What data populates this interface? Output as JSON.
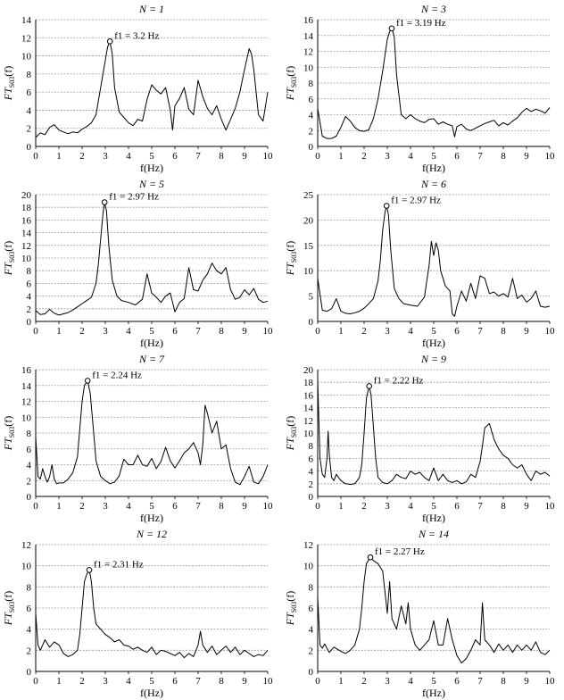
{
  "figure": {
    "xlabel": "f(Hz)",
    "ylabel_main": "FT",
    "ylabel_sub": "S03",
    "ylabel_tail": "(f)",
    "x_ticks": [
      "0",
      "1",
      "2",
      "3",
      "4",
      "5",
      "6",
      "7",
      "8",
      "9",
      "10"
    ],
    "line_color": "#000000",
    "grid_color": "#9a9a9a"
  },
  "chart_data": [
    {
      "type": "line",
      "title": "N = 1",
      "peak_label": "f1 = 3.2 Hz",
      "peak": [
        3.2,
        11.6
      ],
      "xlim": [
        0,
        10
      ],
      "ylim": [
        0,
        14
      ],
      "yticks": [
        "0",
        "2",
        "4",
        "6",
        "8",
        "10",
        "12",
        "14"
      ],
      "x": [
        0,
        0.2,
        0.4,
        0.6,
        0.8,
        1.0,
        1.2,
        1.4,
        1.6,
        1.8,
        2.0,
        2.2,
        2.4,
        2.6,
        2.8,
        3.0,
        3.1,
        3.2,
        3.3,
        3.4,
        3.6,
        3.8,
        4.0,
        4.2,
        4.4,
        4.6,
        4.8,
        5.0,
        5.2,
        5.4,
        5.6,
        5.8,
        5.9,
        6.0,
        6.2,
        6.4,
        6.6,
        6.8,
        7.0,
        7.2,
        7.4,
        7.6,
        7.8,
        8.0,
        8.2,
        8.4,
        8.6,
        8.8,
        9.0,
        9.2,
        9.3,
        9.4,
        9.6,
        9.8,
        10.0
      ],
      "y": [
        1.0,
        1.5,
        1.3,
        2.1,
        2.4,
        1.8,
        1.6,
        1.4,
        1.6,
        1.5,
        1.9,
        2.2,
        2.6,
        3.5,
        6.5,
        9.5,
        11.0,
        11.6,
        10.2,
        6.5,
        3.8,
        3.2,
        2.6,
        2.3,
        3.0,
        2.8,
        5.2,
        6.8,
        6.2,
        5.8,
        6.5,
        4.0,
        1.8,
        4.5,
        5.3,
        6.5,
        4.1,
        3.5,
        7.3,
        5.5,
        4.2,
        3.5,
        4.5,
        3.0,
        1.8,
        3.0,
        4.2,
        6.0,
        8.5,
        10.8,
        10.2,
        8.5,
        3.5,
        2.8,
        6.0
      ]
    },
    {
      "type": "line",
      "title": "N = 3",
      "peak_label": "f1 = 3.19 Hz",
      "peak": [
        3.19,
        14.9
      ],
      "xlim": [
        0,
        10
      ],
      "ylim": [
        0,
        16
      ],
      "yticks": [
        "0",
        "2",
        "4",
        "6",
        "8",
        "10",
        "12",
        "14",
        "16"
      ],
      "x": [
        0,
        0.2,
        0.4,
        0.6,
        0.8,
        1.0,
        1.2,
        1.4,
        1.6,
        1.8,
        2.0,
        2.2,
        2.4,
        2.6,
        2.8,
        3.0,
        3.1,
        3.2,
        3.3,
        3.4,
        3.6,
        3.8,
        4.0,
        4.2,
        4.4,
        4.6,
        4.8,
        5.0,
        5.2,
        5.4,
        5.6,
        5.8,
        5.9,
        6.0,
        6.2,
        6.4,
        6.6,
        6.8,
        7.0,
        7.2,
        7.4,
        7.6,
        7.8,
        8.0,
        8.2,
        8.4,
        8.6,
        8.8,
        9.0,
        9.2,
        9.4,
        9.6,
        9.8,
        10.0
      ],
      "y": [
        4.8,
        1.3,
        1.0,
        1.0,
        1.3,
        2.4,
        3.8,
        3.2,
        2.4,
        2.0,
        1.9,
        2.1,
        3.5,
        6.0,
        9.5,
        13.5,
        14.5,
        14.9,
        13.8,
        9.0,
        4.0,
        3.5,
        4.0,
        3.5,
        3.2,
        3.0,
        3.4,
        3.5,
        2.8,
        3.1,
        2.8,
        2.6,
        1.2,
        2.5,
        2.8,
        2.2,
        2.0,
        2.3,
        2.6,
        2.9,
        3.1,
        3.3,
        2.6,
        3.0,
        2.7,
        3.2,
        3.6,
        4.3,
        4.8,
        4.4,
        4.7,
        4.5,
        4.2,
        4.9
      ]
    },
    {
      "type": "line",
      "title": "N = 5",
      "peak_label": "f1 = 2.97 Hz",
      "peak": [
        2.97,
        18.8
      ],
      "xlim": [
        0,
        10
      ],
      "ylim": [
        0,
        20
      ],
      "yticks": [
        "0",
        "2",
        "4",
        "6",
        "8",
        "10",
        "12",
        "14",
        "16",
        "18",
        "20"
      ],
      "x": [
        0,
        0.2,
        0.4,
        0.6,
        0.8,
        1.0,
        1.2,
        1.4,
        1.6,
        1.8,
        2.0,
        2.2,
        2.4,
        2.6,
        2.7,
        2.8,
        2.9,
        2.97,
        3.05,
        3.15,
        3.3,
        3.5,
        3.7,
        4.0,
        4.3,
        4.6,
        4.8,
        5.0,
        5.2,
        5.4,
        5.6,
        5.8,
        6.0,
        6.2,
        6.4,
        6.6,
        6.8,
        7.0,
        7.2,
        7.4,
        7.6,
        7.8,
        8.0,
        8.2,
        8.4,
        8.6,
        8.8,
        9.0,
        9.2,
        9.4,
        9.6,
        9.8,
        10.0
      ],
      "y": [
        1.7,
        1.1,
        1.2,
        1.9,
        1.3,
        1.0,
        1.2,
        1.4,
        1.8,
        2.3,
        2.8,
        3.3,
        3.8,
        6.0,
        9.0,
        13.0,
        17.0,
        18.8,
        17.5,
        12.0,
        6.5,
        4.0,
        3.3,
        3.0,
        2.6,
        3.5,
        7.5,
        4.5,
        3.8,
        3.0,
        4.0,
        4.5,
        1.5,
        3.0,
        3.6,
        8.5,
        5.0,
        4.8,
        6.5,
        7.5,
        9.2,
        8.0,
        7.5,
        8.5,
        5.0,
        3.5,
        3.8,
        5.0,
        4.2,
        5.2,
        3.5,
        3.0,
        3.2
      ]
    },
    {
      "type": "line",
      "title": "N = 6",
      "peak_label": "f1 = 2.97 Hz",
      "peak": [
        2.97,
        22.8
      ],
      "xlim": [
        0,
        10
      ],
      "ylim": [
        0,
        25
      ],
      "yticks": [
        "0",
        "5",
        "10",
        "15",
        "20",
        "25"
      ],
      "x": [
        0,
        0.2,
        0.4,
        0.6,
        0.8,
        1.0,
        1.2,
        1.4,
        1.6,
        1.8,
        2.0,
        2.2,
        2.4,
        2.6,
        2.7,
        2.8,
        2.9,
        2.97,
        3.05,
        3.15,
        3.3,
        3.5,
        3.7,
        4.0,
        4.3,
        4.6,
        4.8,
        4.9,
        5.0,
        5.1,
        5.2,
        5.3,
        5.5,
        5.7,
        5.8,
        5.9,
        6.0,
        6.2,
        6.4,
        6.6,
        6.8,
        7.0,
        7.2,
        7.4,
        7.6,
        7.8,
        8.0,
        8.2,
        8.4,
        8.6,
        8.8,
        9.0,
        9.2,
        9.4,
        9.6,
        9.8,
        10.0
      ],
      "y": [
        8.5,
        2.2,
        2.0,
        2.5,
        4.5,
        2.0,
        1.6,
        1.5,
        1.7,
        2.0,
        2.6,
        3.5,
        4.5,
        8.0,
        12.0,
        18.0,
        21.5,
        22.8,
        21.0,
        14.0,
        6.5,
        4.5,
        3.5,
        3.2,
        3.0,
        4.8,
        11.0,
        15.8,
        13.0,
        15.5,
        14.0,
        10.0,
        7.0,
        6.0,
        1.5,
        1.0,
        3.0,
        6.0,
        4.0,
        7.5,
        4.5,
        9.0,
        8.5,
        5.5,
        5.8,
        5.0,
        5.5,
        4.8,
        8.5,
        4.5,
        5.2,
        3.8,
        4.5,
        6.0,
        3.0,
        2.8,
        3.0
      ]
    },
    {
      "type": "line",
      "title": "N = 7",
      "peak_label": "f1 = 2.24 Hz",
      "peak": [
        2.24,
        14.6
      ],
      "xlim": [
        0,
        10
      ],
      "ylim": [
        0,
        16
      ],
      "yticks": [
        "0",
        "2",
        "4",
        "6",
        "8",
        "10",
        "12",
        "14",
        "16"
      ],
      "x": [
        0,
        0.1,
        0.2,
        0.3,
        0.4,
        0.5,
        0.6,
        0.7,
        0.8,
        0.9,
        1.0,
        1.2,
        1.4,
        1.6,
        1.8,
        1.9,
        2.0,
        2.1,
        2.24,
        2.35,
        2.5,
        2.6,
        2.8,
        3.0,
        3.2,
        3.4,
        3.6,
        3.8,
        4.0,
        4.2,
        4.4,
        4.6,
        4.8,
        5.0,
        5.2,
        5.4,
        5.6,
        5.8,
        6.0,
        6.2,
        6.4,
        6.6,
        6.8,
        7.0,
        7.1,
        7.2,
        7.3,
        7.4,
        7.6,
        7.8,
        8.0,
        8.2,
        8.4,
        8.6,
        8.8,
        9.0,
        9.2,
        9.4,
        9.6,
        9.8,
        10.0
      ],
      "y": [
        7.5,
        2.5,
        2.2,
        3.5,
        2.5,
        1.8,
        2.5,
        4.0,
        2.2,
        1.6,
        1.7,
        1.7,
        2.2,
        3.0,
        5.0,
        8.5,
        12.0,
        14.0,
        14.6,
        13.0,
        8.0,
        4.5,
        2.5,
        2.0,
        1.6,
        1.8,
        2.6,
        4.7,
        4.0,
        4.0,
        5.2,
        4.0,
        3.8,
        4.8,
        3.5,
        4.4,
        6.2,
        4.5,
        3.6,
        4.5,
        5.5,
        6.0,
        6.8,
        5.5,
        4.0,
        6.5,
        11.5,
        10.5,
        8.0,
        9.5,
        6.0,
        6.5,
        3.5,
        1.8,
        1.5,
        2.5,
        3.8,
        1.8,
        1.6,
        2.5,
        4.0
      ]
    },
    {
      "type": "line",
      "title": "N = 9",
      "peak_label": "f1 = 2.22 Hz",
      "peak": [
        2.22,
        17.4
      ],
      "xlim": [
        0,
        10
      ],
      "ylim": [
        0,
        20
      ],
      "yticks": [
        "0",
        "2",
        "4",
        "6",
        "8",
        "10",
        "12",
        "14",
        "16",
        "18",
        "20"
      ],
      "x": [
        0,
        0.05,
        0.1,
        0.2,
        0.3,
        0.4,
        0.45,
        0.5,
        0.6,
        0.7,
        0.8,
        1.0,
        1.2,
        1.4,
        1.6,
        1.8,
        1.9,
        2.0,
        2.1,
        2.22,
        2.3,
        2.4,
        2.5,
        2.6,
        2.8,
        3.0,
        3.2,
        3.4,
        3.6,
        3.8,
        4.0,
        4.2,
        4.4,
        4.6,
        4.8,
        5.0,
        5.2,
        5.4,
        5.6,
        5.8,
        6.0,
        6.2,
        6.4,
        6.6,
        6.8,
        7.0,
        7.1,
        7.2,
        7.4,
        7.6,
        7.8,
        8.0,
        8.2,
        8.4,
        8.6,
        8.8,
        9.0,
        9.2,
        9.4,
        9.6,
        9.8,
        10.0
      ],
      "y": [
        18.3,
        12.0,
        6.0,
        3.5,
        3.0,
        6.0,
        10.3,
        6.5,
        3.0,
        2.5,
        3.5,
        2.5,
        2.0,
        1.9,
        2.0,
        3.0,
        5.0,
        10.0,
        15.5,
        17.4,
        16.0,
        11.0,
        6.0,
        3.0,
        2.2,
        2.0,
        2.5,
        3.5,
        3.0,
        2.8,
        4.0,
        3.5,
        3.8,
        3.0,
        2.5,
        4.5,
        2.5,
        3.5,
        2.5,
        2.2,
        2.5,
        2.0,
        2.3,
        3.5,
        3.0,
        5.5,
        8.0,
        10.8,
        11.5,
        9.0,
        7.5,
        6.5,
        6.0,
        5.0,
        4.5,
        5.0,
        3.5,
        2.5,
        4.0,
        3.5,
        3.8,
        3.2
      ]
    },
    {
      "type": "line",
      "title": "N = 12",
      "peak_label": "f1 = 2.31 Hz",
      "peak": [
        2.31,
        9.6
      ],
      "xlim": [
        0,
        10
      ],
      "ylim": [
        0,
        12
      ],
      "yticks": [
        "0",
        "2",
        "4",
        "6",
        "8",
        "10",
        "12"
      ],
      "x": [
        0,
        0.1,
        0.2,
        0.4,
        0.6,
        0.8,
        1.0,
        1.2,
        1.4,
        1.6,
        1.8,
        1.9,
        2.0,
        2.1,
        2.2,
        2.31,
        2.4,
        2.5,
        2.6,
        2.8,
        3.0,
        3.2,
        3.4,
        3.6,
        3.8,
        4.0,
        4.2,
        4.4,
        4.6,
        4.8,
        5.0,
        5.2,
        5.4,
        5.6,
        5.8,
        6.0,
        6.2,
        6.4,
        6.6,
        6.8,
        7.0,
        7.1,
        7.2,
        7.4,
        7.6,
        7.8,
        8.0,
        8.2,
        8.4,
        8.6,
        8.8,
        9.0,
        9.2,
        9.4,
        9.6,
        9.8,
        10.0
      ],
      "y": [
        5.5,
        2.5,
        2.0,
        3.0,
        2.3,
        2.8,
        2.5,
        1.7,
        1.4,
        1.6,
        2.0,
        3.5,
        6.0,
        8.5,
        9.2,
        9.6,
        8.5,
        6.0,
        4.5,
        4.0,
        3.5,
        3.2,
        2.8,
        3.0,
        2.5,
        2.4,
        2.1,
        2.3,
        2.0,
        1.8,
        2.3,
        1.6,
        2.0,
        1.9,
        1.7,
        1.5,
        1.8,
        1.3,
        1.7,
        1.4,
        2.5,
        3.8,
        2.5,
        1.8,
        2.4,
        1.6,
        2.0,
        2.4,
        1.8,
        2.3,
        1.6,
        2.0,
        1.7,
        1.4,
        1.6,
        1.5,
        2.0
      ]
    },
    {
      "type": "line",
      "title": "N = 14",
      "peak_label": "f1 = 2.27 Hz",
      "peak": [
        2.27,
        10.8
      ],
      "xlim": [
        0,
        10
      ],
      "ylim": [
        0,
        12
      ],
      "yticks": [
        "0",
        "2",
        "4",
        "6",
        "8",
        "10",
        "12"
      ],
      "x": [
        0,
        0.1,
        0.2,
        0.3,
        0.5,
        0.7,
        1.0,
        1.2,
        1.4,
        1.6,
        1.8,
        1.9,
        2.0,
        2.1,
        2.27,
        2.4,
        2.6,
        2.8,
        3.0,
        3.1,
        3.2,
        3.4,
        3.6,
        3.8,
        3.9,
        4.0,
        4.2,
        4.4,
        4.6,
        4.8,
        5.0,
        5.2,
        5.4,
        5.6,
        5.8,
        6.0,
        6.2,
        6.4,
        6.6,
        6.8,
        7.0,
        7.1,
        7.2,
        7.4,
        7.6,
        7.8,
        8.0,
        8.2,
        8.4,
        8.6,
        8.8,
        9.0,
        9.2,
        9.4,
        9.6,
        9.8,
        10.0
      ],
      "y": [
        7.0,
        2.5,
        2.2,
        2.6,
        1.8,
        2.3,
        1.9,
        1.7,
        2.0,
        2.5,
        4.0,
        6.0,
        8.5,
        10.2,
        10.8,
        10.5,
        10.2,
        9.5,
        5.5,
        8.5,
        5.0,
        4.0,
        6.2,
        4.5,
        6.5,
        4.0,
        2.5,
        2.0,
        2.5,
        3.0,
        4.8,
        2.5,
        2.5,
        5.0,
        3.0,
        1.5,
        0.8,
        1.2,
        2.0,
        3.0,
        2.5,
        6.5,
        3.0,
        2.5,
        1.8,
        2.6,
        2.0,
        2.5,
        1.8,
        2.5,
        2.0,
        2.5,
        2.0,
        2.8,
        1.8,
        1.6,
        2.0
      ]
    }
  ]
}
